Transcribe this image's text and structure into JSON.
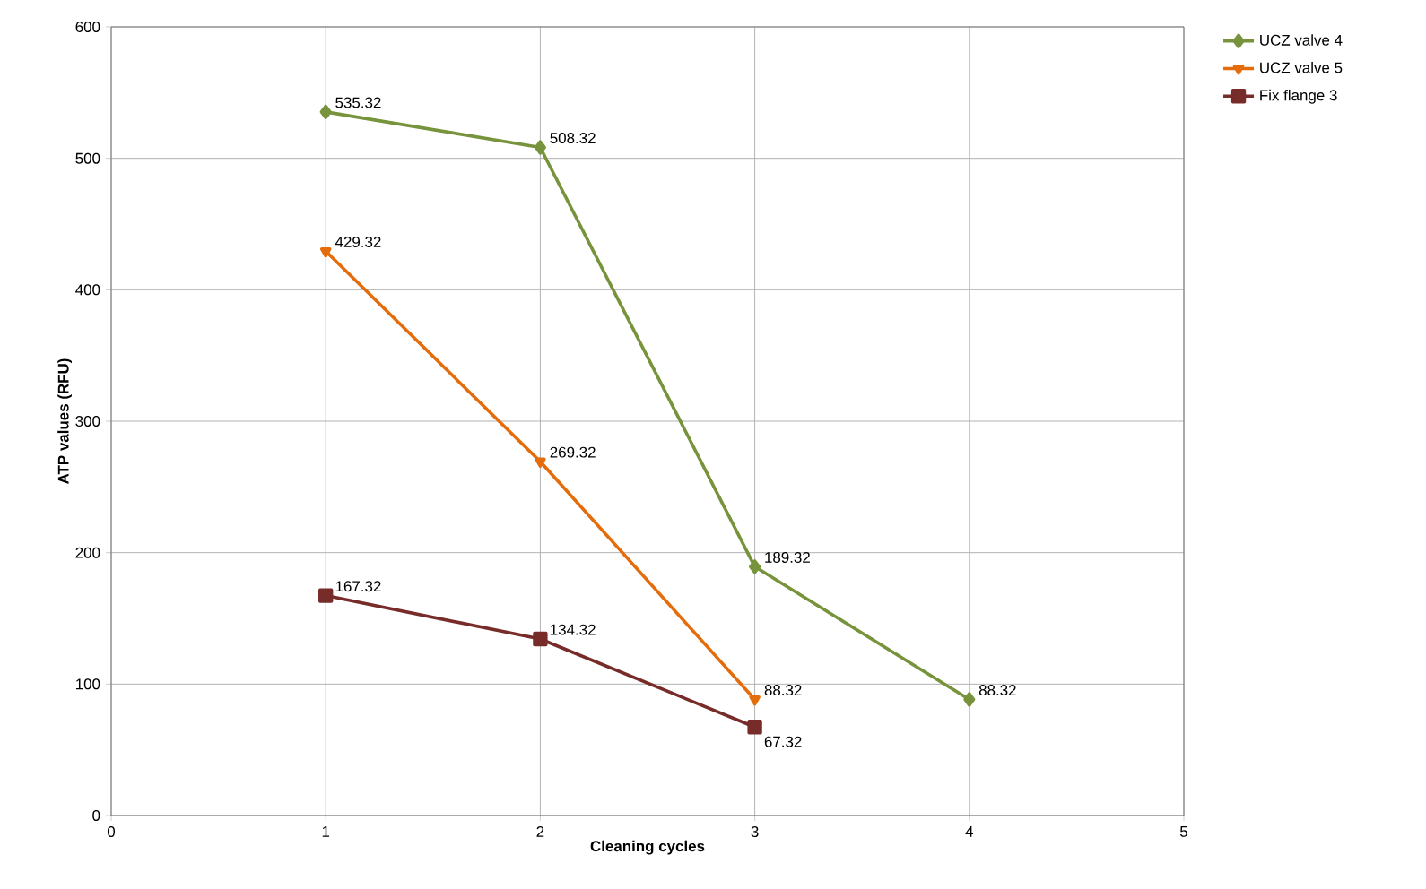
{
  "chart_data": {
    "type": "line",
    "xlabel": "Cleaning cycles",
    "ylabel": "ATP values (RFU)",
    "x": [
      1,
      2,
      3,
      4
    ],
    "series": [
      {
        "name": "UCZ valve 4",
        "color": "#77933c",
        "marker": "diamond",
        "values": [
          535.32,
          508.32,
          189.32,
          88.32
        ]
      },
      {
        "name": "UCZ valve 5",
        "color": "#e46c0a",
        "marker": "triangle",
        "values": [
          429.32,
          269.32,
          88.32,
          null
        ]
      },
      {
        "name": "Fix flange 3",
        "color": "#772c2a",
        "marker": "square",
        "values": [
          167.32,
          134.32,
          67.32,
          null
        ]
      }
    ],
    "xlim": [
      0,
      5
    ],
    "xticks": [
      0,
      1,
      2,
      3,
      4,
      5
    ],
    "ylim": [
      0,
      600
    ],
    "yticks": [
      0,
      100,
      200,
      300,
      400,
      500,
      600
    ],
    "grid": true,
    "legend": "top right",
    "data_labels": true,
    "line_style": "solid"
  }
}
